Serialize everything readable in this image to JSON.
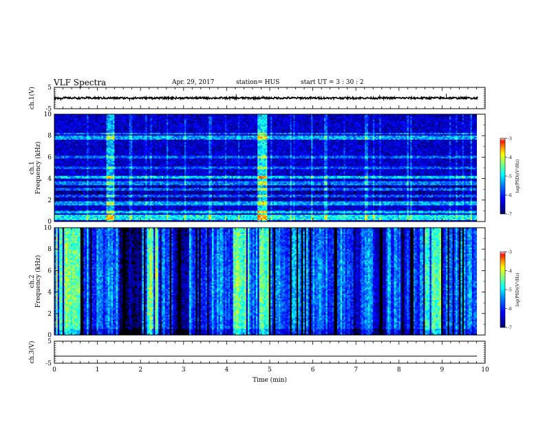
{
  "header": {
    "title": "VLF Spectra",
    "date": "Apr. 29, 2017",
    "station": "station= HUS",
    "start_ut": "start  UT  =   3  : 30 : 2"
  },
  "colorbar": {
    "label": "log(PSD)(V²/Hz)",
    "ticks": [
      "-3",
      "-4",
      "-5",
      "-6",
      "-7"
    ],
    "colors": [
      "#000080",
      "#0000ff",
      "#0080ff",
      "#00ffff",
      "#80ff80",
      "#ffff00",
      "#ff8000",
      "#ff0000",
      "#ffffff"
    ]
  },
  "chart_data": [
    {
      "type": "line",
      "panel": "waveform-ch1",
      "ylabel": "ch.1(V)",
      "ylim": [
        -5,
        5
      ],
      "yticks": [
        "5",
        "-5"
      ],
      "xlim": [
        0,
        10
      ],
      "baseline": 0,
      "noise_amplitude": 0.45,
      "spikes": [
        {
          "x": 0.15,
          "y": -1.2
        },
        {
          "x": 1.75,
          "y": -1.5
        },
        {
          "x": 4.22,
          "y": 1.8
        },
        {
          "x": 4.84,
          "y": 1.2
        },
        {
          "x": 7.55,
          "y": 1.4
        },
        {
          "x": 9.1,
          "y": 2.0
        }
      ]
    },
    {
      "type": "heatmap",
      "panel": "spectrogram-ch1",
      "ylabel": "ch.1\nFrequency (kHz)",
      "ylim": [
        0,
        10
      ],
      "yticks": [
        "0",
        "2",
        "4",
        "6",
        "8",
        "10"
      ],
      "xlim": [
        0,
        10
      ],
      "zlim": [
        -7,
        -3
      ],
      "background_level": -6.3,
      "horizontal_bands_khz": [
        {
          "f": 0.4,
          "level": -4.8,
          "width": 0.25
        },
        {
          "f": 0.9,
          "level": -5.1,
          "width": 0.15
        },
        {
          "f": 1.7,
          "level": -5.2,
          "width": 0.2
        },
        {
          "f": 2.4,
          "level": -5.4,
          "width": 0.15
        },
        {
          "f": 3.0,
          "level": -5.3,
          "width": 0.15
        },
        {
          "f": 3.6,
          "level": -5.2,
          "width": 0.2
        },
        {
          "f": 4.1,
          "level": -5.0,
          "width": 0.15
        },
        {
          "f": 5.0,
          "level": -5.6,
          "width": 0.15
        },
        {
          "f": 6.0,
          "level": -5.5,
          "width": 0.15
        },
        {
          "f": 7.8,
          "level": -5.2,
          "width": 0.15
        },
        {
          "f": 8.2,
          "level": -5.4,
          "width": 0.1
        }
      ],
      "broadband_events_min": [
        {
          "t": 1.3,
          "level": -5.0,
          "width": 0.1
        },
        {
          "t": 4.85,
          "level": -4.7,
          "width": 0.12
        },
        {
          "t": 6.3,
          "level": -5.4,
          "width": 0.04
        },
        {
          "t": 7.25,
          "level": -5.4,
          "width": 0.04
        }
      ]
    },
    {
      "type": "heatmap",
      "panel": "spectrogram-ch2",
      "ylabel": "ch.2\nFrequency (kHz)",
      "ylim": [
        0,
        10
      ],
      "yticks": [
        "0",
        "2",
        "4",
        "6",
        "8",
        "10"
      ],
      "xlim": [
        0,
        10
      ],
      "zlim": [
        -7,
        -3
      ],
      "background_level": -5.4,
      "quiet_intervals_min": [
        {
          "t0": 1.5,
          "t1": 2.05,
          "level": -6.8
        },
        {
          "t0": 2.75,
          "t1": 3.15,
          "level": -6.6
        },
        {
          "t0": 6.95,
          "t1": 7.1,
          "level": -6.5
        },
        {
          "t0": 7.45,
          "t1": 7.7,
          "level": -6.4
        },
        {
          "t0": 8.05,
          "t1": 8.15,
          "level": -6.5
        }
      ],
      "active_intervals_min": [
        {
          "t0": 0.05,
          "t1": 0.6,
          "level": -4.2
        },
        {
          "t0": 2.15,
          "t1": 2.5,
          "level": -4.3
        },
        {
          "t0": 4.15,
          "t1": 4.55,
          "level": -4.4
        },
        {
          "t0": 4.75,
          "t1": 5.0,
          "level": -4.3
        },
        {
          "t0": 8.6,
          "t1": 9.0,
          "level": -4.5
        }
      ]
    },
    {
      "type": "line",
      "panel": "waveform-ch3",
      "ylabel": "ch.3(V)",
      "ylim": [
        -5,
        5
      ],
      "yticks": [
        "5",
        "-5"
      ],
      "xlim": [
        0,
        10
      ],
      "xticks": [
        "0",
        "1",
        "2",
        "3",
        "4",
        "5",
        "6",
        "7",
        "8",
        "9",
        "10"
      ],
      "xlabel": "Time  (min)",
      "constant_value": -1.8
    }
  ]
}
